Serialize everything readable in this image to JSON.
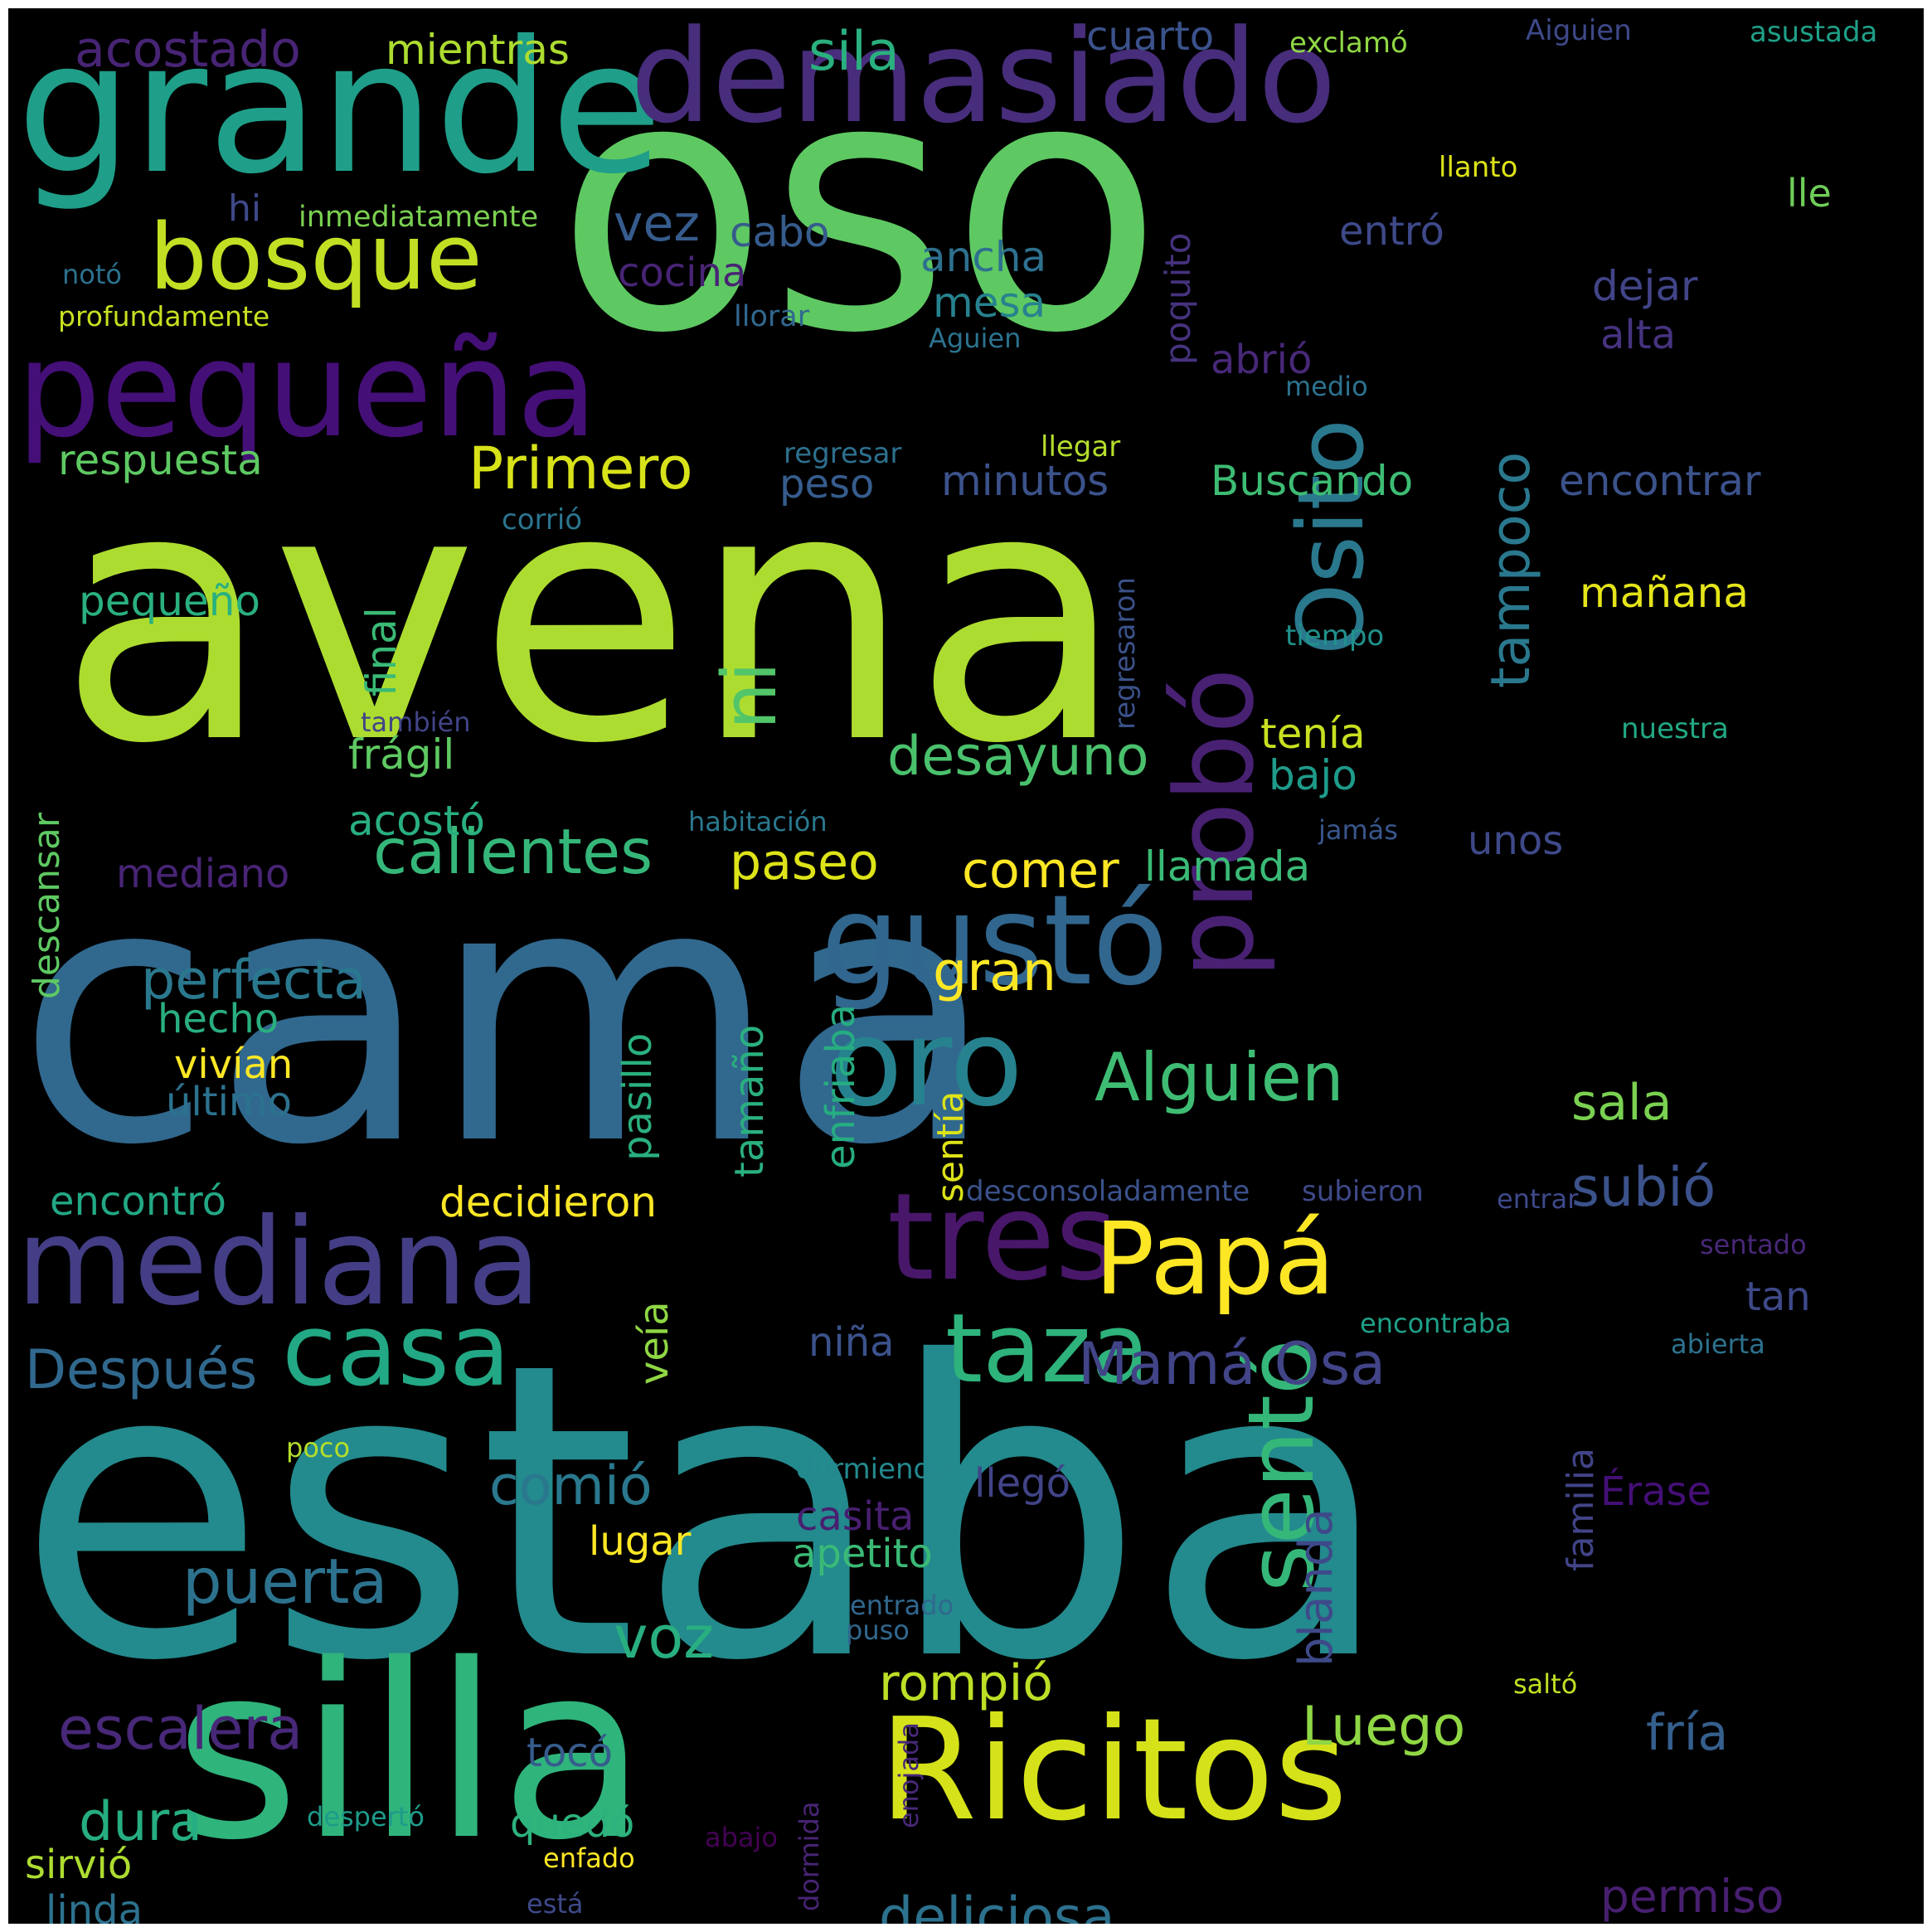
{
  "background": "#000000",
  "frame_color": "#ffffff",
  "palette": [
    "#440154",
    "#482878",
    "#3e4989",
    "#31688e",
    "#26828e",
    "#1f9e89",
    "#35b779",
    "#6ece58",
    "#b5de2b",
    "#fde725"
  ],
  "words": [
    {
      "text": "avena",
      "color": "#addc30"
    },
    {
      "text": "cama",
      "color": "#31688e"
    },
    {
      "text": "estaba",
      "color": "#238a8d"
    },
    {
      "text": "oso",
      "color": "#5ec962"
    },
    {
      "text": "silla",
      "color": "#2fb47c"
    },
    {
      "text": "grande",
      "color": "#1f9e89"
    },
    {
      "text": "pequeña",
      "color": "#440f76"
    },
    {
      "text": "demasiado",
      "color": "#472d7b"
    },
    {
      "text": "Ricitos",
      "color": "#d5e21a"
    },
    {
      "text": "mediana",
      "color": "#433e85"
    },
    {
      "text": "gustó",
      "color": "#31668e"
    },
    {
      "text": "oro",
      "color": "#26828e"
    },
    {
      "text": "tres",
      "color": "#481769"
    },
    {
      "text": "Papá",
      "color": "#fde725"
    },
    {
      "text": "probó",
      "color": "#482173"
    },
    {
      "text": "sentó",
      "color": "#35b779"
    },
    {
      "text": "Osito",
      "color": "#2a788e"
    },
    {
      "text": "casa",
      "color": "#22a884"
    },
    {
      "text": "taza",
      "color": "#2eb37c"
    },
    {
      "text": "bosque",
      "color": "#c2df23"
    },
    {
      "text": "Alguien",
      "color": "#3fbc73"
    },
    {
      "text": "Mamá Osa",
      "color": "#414487"
    },
    {
      "text": "ni",
      "color": "#52c569"
    },
    {
      "text": "Primero",
      "color": "#d8e219"
    },
    {
      "text": "calientes",
      "color": "#35b779"
    },
    {
      "text": "puerta",
      "color": "#2c728e"
    },
    {
      "text": "voz",
      "color": "#29af7f"
    },
    {
      "text": "escalera",
      "color": "#482878"
    },
    {
      "text": "deliciosa",
      "color": "#2c718e"
    },
    {
      "text": "desayuno",
      "color": "#4ac16d"
    },
    {
      "text": "tampoco",
      "color": "#2a788e"
    },
    {
      "text": "subió",
      "color": "#3b528b"
    },
    {
      "text": "paseo",
      "color": "#dde318"
    },
    {
      "text": "comer",
      "color": "#fde725"
    },
    {
      "text": "llamada",
      "color": "#3aba76"
    },
    {
      "text": "perfecta",
      "color": "#2a788e"
    },
    {
      "text": "gran",
      "color": "#fde725"
    },
    {
      "text": "rompió",
      "color": "#bddf26"
    },
    {
      "text": "Luego",
      "color": "#8fd744"
    },
    {
      "text": "fría",
      "color": "#355f8d"
    },
    {
      "text": "sala",
      "color": "#7ad151"
    },
    {
      "text": "permiso",
      "color": "#481f70"
    },
    {
      "text": "Después",
      "color": "#31688e"
    },
    {
      "text": "comió",
      "color": "#2a788e"
    },
    {
      "text": "decidieron",
      "color": "#fde725"
    },
    {
      "text": "acostado",
      "color": "#482475"
    },
    {
      "text": "sila",
      "color": "#2ab07f"
    },
    {
      "text": "mientras",
      "color": "#addc30"
    },
    {
      "text": "cuarto",
      "color": "#3b528b"
    },
    {
      "text": "exclamó",
      "color": "#8fd744"
    },
    {
      "text": "Aiguien",
      "color": "#3e4989"
    },
    {
      "text": "asustada",
      "color": "#1fa088"
    },
    {
      "text": "vez",
      "color": "#365c8d"
    },
    {
      "text": "cabo",
      "color": "#365c8d"
    },
    {
      "text": "cocina",
      "color": "#482475"
    },
    {
      "text": "hi",
      "color": "#3e4989"
    },
    {
      "text": "inmediatamente",
      "color": "#7ad151"
    },
    {
      "text": "notó",
      "color": "#2c728e"
    },
    {
      "text": "profundamente",
      "color": "#c8e020"
    },
    {
      "text": "ancha",
      "color": "#2d708e"
    },
    {
      "text": "mesa",
      "color": "#26828e"
    },
    {
      "text": "poquito",
      "color": "#46327e"
    },
    {
      "text": "entró",
      "color": "#3e4989"
    },
    {
      "text": "dejar",
      "color": "#414487"
    },
    {
      "text": "alta",
      "color": "#46337f"
    },
    {
      "text": "llanto",
      "color": "#dde318"
    },
    {
      "text": "lle",
      "color": "#6ece58"
    },
    {
      "text": "llorar",
      "color": "#31688e"
    },
    {
      "text": "Aguien",
      "color": "#2c728e"
    },
    {
      "text": "abrió",
      "color": "#482878"
    },
    {
      "text": "medio",
      "color": "#2c728e"
    },
    {
      "text": "respuesta",
      "color": "#5ec962"
    },
    {
      "text": "regresar",
      "color": "#2d708e"
    },
    {
      "text": "llegar",
      "color": "#b5de2b"
    },
    {
      "text": "peso",
      "color": "#365c8d"
    },
    {
      "text": "minutos",
      "color": "#3b528b"
    },
    {
      "text": "Buscando",
      "color": "#3dbc74"
    },
    {
      "text": "encontrar",
      "color": "#3b528b"
    },
    {
      "text": "corrió",
      "color": "#2b748e"
    },
    {
      "text": "regresaron",
      "color": "#3b528b"
    },
    {
      "text": "pequeño",
      "color": "#2ab07f"
    },
    {
      "text": "final",
      "color": "#3aba76"
    },
    {
      "text": "mañana",
      "color": "#e5e419"
    },
    {
      "text": "tiempo",
      "color": "#21918c"
    },
    {
      "text": "también",
      "color": "#414487"
    },
    {
      "text": "frágil",
      "color": "#5ec962"
    },
    {
      "text": "tenía",
      "color": "#c8e020"
    },
    {
      "text": "bajo",
      "color": "#1e9b8a"
    },
    {
      "text": "nuestra",
      "color": "#22a884"
    },
    {
      "text": "acostó",
      "color": "#29af7f"
    },
    {
      "text": "habitación",
      "color": "#2a788e"
    },
    {
      "text": "jamás",
      "color": "#39568c"
    },
    {
      "text": "descansar",
      "color": "#5ec962"
    },
    {
      "text": "mediano",
      "color": "#482475"
    },
    {
      "text": "unos",
      "color": "#3e4989"
    },
    {
      "text": "hecho",
      "color": "#29af7f"
    },
    {
      "text": "vivían",
      "color": "#fde725"
    },
    {
      "text": "último",
      "color": "#2c728e"
    },
    {
      "text": "pasillo",
      "color": "#2ab07f"
    },
    {
      "text": "tamaño",
      "color": "#2ab07f"
    },
    {
      "text": "enfriaba",
      "color": "#26ad81"
    },
    {
      "text": "sentía",
      "color": "#dde318"
    },
    {
      "text": "encontró",
      "color": "#22a884"
    },
    {
      "text": "desconsoladamente",
      "color": "#3b528b"
    },
    {
      "text": "subieron",
      "color": "#3e4989"
    },
    {
      "text": "entrar",
      "color": "#3e4989"
    },
    {
      "text": "sentado",
      "color": "#482878"
    },
    {
      "text": "tan",
      "color": "#3e4989"
    },
    {
      "text": "encontraba",
      "color": "#1fa088"
    },
    {
      "text": "niña",
      "color": "#3b528b"
    },
    {
      "text": "veía",
      "color": "#8fd744"
    },
    {
      "text": "abierta",
      "color": "#2c728e"
    },
    {
      "text": "familia",
      "color": "#414487"
    },
    {
      "text": "Érase",
      "color": "#440f76"
    },
    {
      "text": "poco",
      "color": "#b5de2b"
    },
    {
      "text": "durmiendo",
      "color": "#23898e"
    },
    {
      "text": "llegó",
      "color": "#414487"
    },
    {
      "text": "casita",
      "color": "#481f70"
    },
    {
      "text": "blanda",
      "color": "#3e4989"
    },
    {
      "text": "apetito",
      "color": "#3aba76"
    },
    {
      "text": "lugar",
      "color": "#fde725"
    },
    {
      "text": "entrado",
      "color": "#31688e"
    },
    {
      "text": "puso",
      "color": "#31688e"
    },
    {
      "text": "saltó",
      "color": "#c2df23"
    },
    {
      "text": "tocó",
      "color": "#365c8d"
    },
    {
      "text": "quedó",
      "color": "#2db27d"
    },
    {
      "text": "dura",
      "color": "#26ad81"
    },
    {
      "text": "sirvió",
      "color": "#addc30"
    },
    {
      "text": "linda",
      "color": "#2c728e"
    },
    {
      "text": "despertó",
      "color": "#1e9b8a"
    },
    {
      "text": "enfado",
      "color": "#fde725"
    },
    {
      "text": "abajo",
      "color": "#440154"
    },
    {
      "text": "dormida",
      "color": "#482475"
    },
    {
      "text": "enojada",
      "color": "#482878"
    },
    {
      "text": "está",
      "color": "#3e4989"
    }
  ]
}
